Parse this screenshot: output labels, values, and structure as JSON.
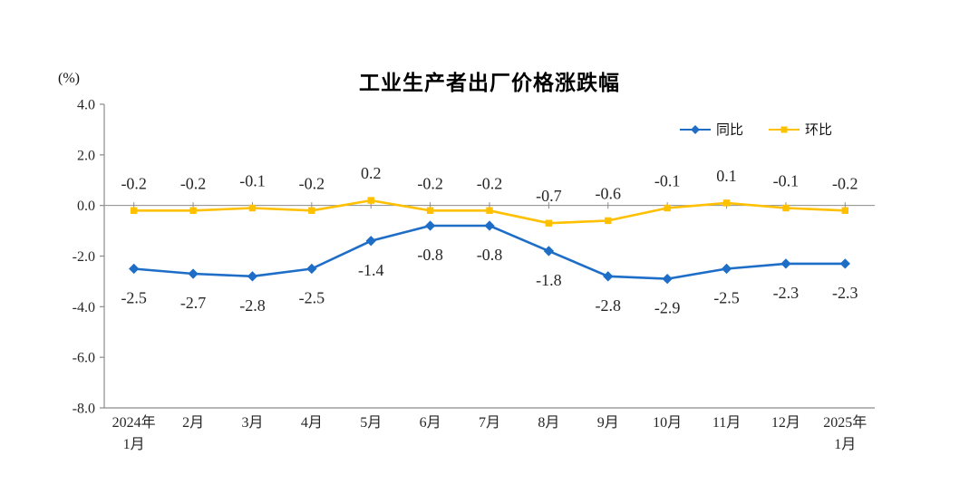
{
  "chart_data": {
    "type": "line",
    "title": "工业生产者出厂价格涨跌幅",
    "unit_label": "(%)",
    "categories": [
      "2024年\n1月",
      "2月",
      "3月",
      "4月",
      "5月",
      "6月",
      "7月",
      "8月",
      "9月",
      "10月",
      "11月",
      "12月",
      "2025年\n1月"
    ],
    "series": [
      {
        "name": "同比",
        "color": "#1e6ec8",
        "marker": "diamond",
        "label_position": "below",
        "values": [
          -2.5,
          -2.7,
          -2.8,
          -2.5,
          -1.4,
          -0.8,
          -0.8,
          -1.8,
          -2.8,
          -2.9,
          -2.5,
          -2.3,
          -2.3
        ]
      },
      {
        "name": "环比",
        "color": "#ffc000",
        "marker": "square",
        "label_position": "above",
        "values": [
          -0.2,
          -0.2,
          -0.1,
          -0.2,
          0.2,
          -0.2,
          -0.2,
          -0.7,
          -0.6,
          -0.1,
          0.1,
          -0.1,
          -0.2
        ]
      }
    ],
    "y_tick_labels": [
      "4.0",
      "2.0",
      "0.0",
      "-2.0",
      "-4.0",
      "-6.0",
      "-8.0"
    ],
    "ylim": [
      -8.0,
      4.0
    ],
    "legend_position": "top-right",
    "grid": false,
    "axis_color": "#8c8c8c",
    "text_color": "#262626"
  }
}
